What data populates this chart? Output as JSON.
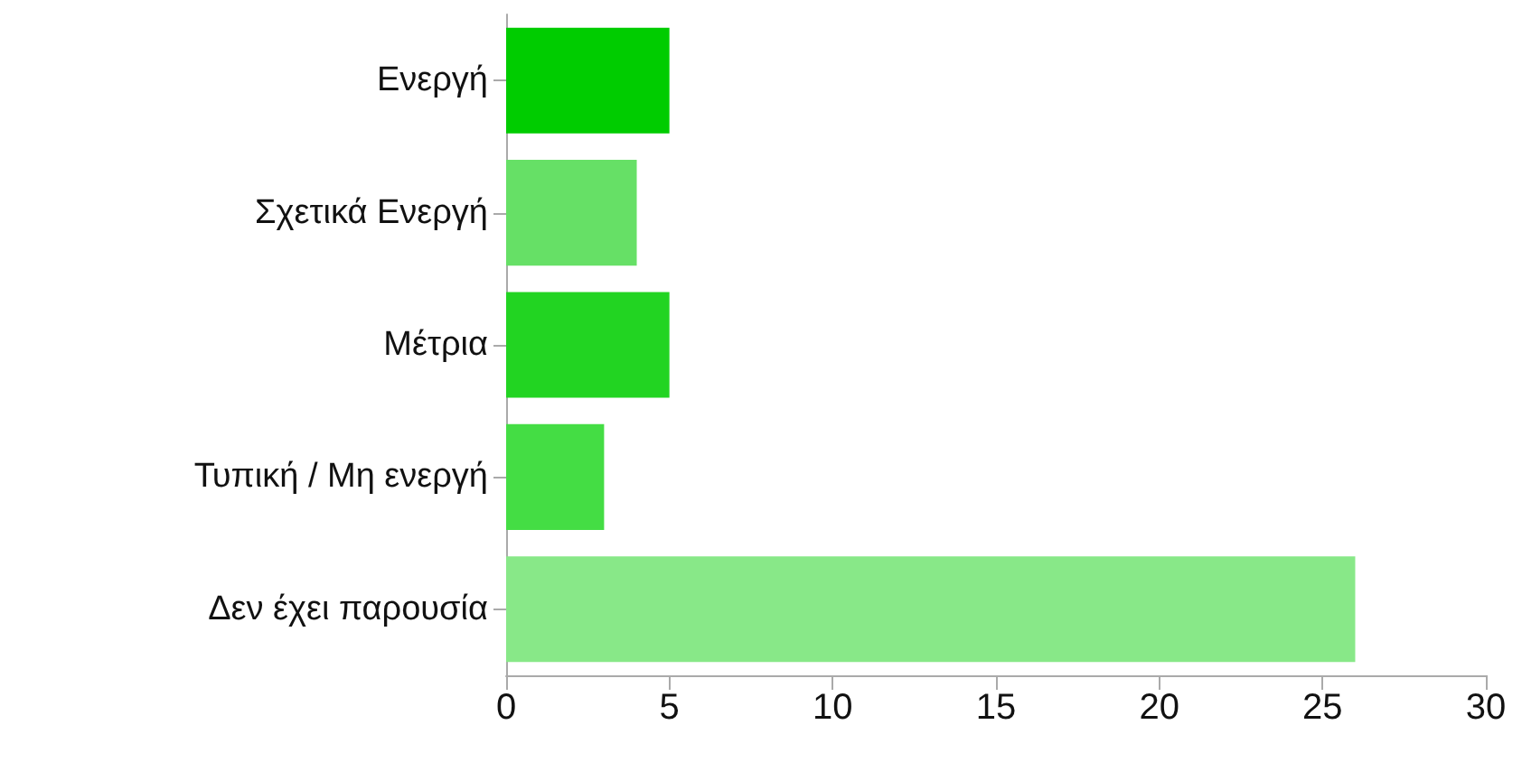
{
  "chart_data": {
    "type": "bar",
    "orientation": "horizontal",
    "categories": [
      "Ενεργή",
      "Σχετικά Ενεργή",
      "Μέτρια",
      "Τυπική / Μη ενεργή",
      "Δεν έχει παρουσία"
    ],
    "values": [
      5,
      4,
      5,
      3,
      26
    ],
    "colors": [
      "#00cc00",
      "#66e066",
      "#22d422",
      "#44dd44",
      "#88e888"
    ],
    "xlim": [
      0,
      30
    ],
    "xticks": [
      0,
      5,
      10,
      15,
      20,
      25,
      30
    ],
    "grid": false
  }
}
